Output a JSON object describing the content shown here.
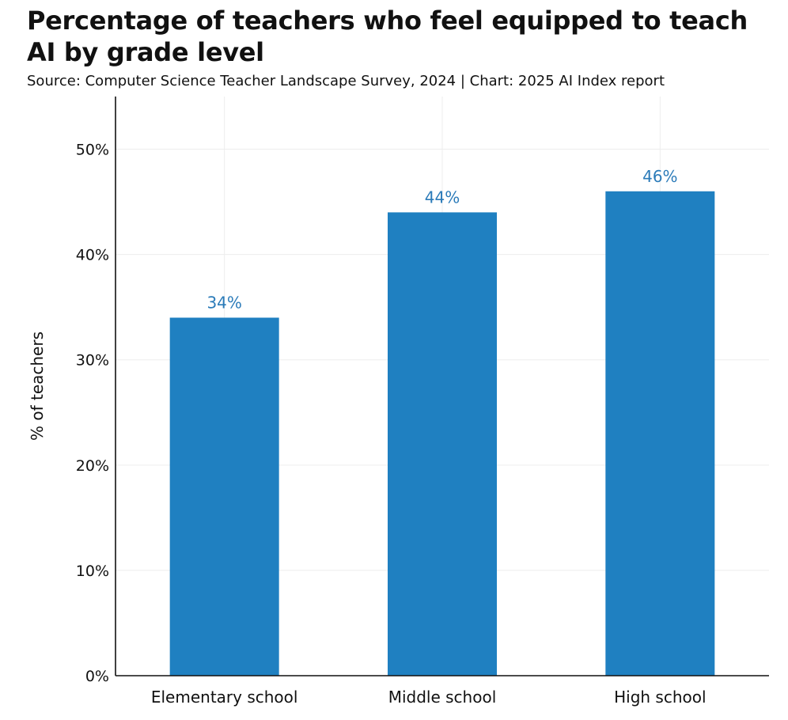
{
  "header": {
    "title": "Percentage of teachers who feel equipped to teach AI by grade level",
    "subtitle": "Source: Computer Science Teacher Landscape Survey, 2024 | Chart: 2025 AI Index report"
  },
  "colors": {
    "bar": "#1f80c1",
    "data_label": "#2b7bb9",
    "grid": "#ededed",
    "axis": "#111111"
  },
  "chart_data": {
    "type": "bar",
    "title": "Percentage of teachers who feel equipped to teach AI by grade level",
    "subtitle": "Source: Computer Science Teacher Landscape Survey, 2024 | Chart: 2025 AI Index report",
    "categories": [
      "Elementary school",
      "Middle school",
      "High school"
    ],
    "values": [
      34,
      44,
      46
    ],
    "data_labels": [
      "34%",
      "44%",
      "46%"
    ],
    "xlabel": "",
    "ylabel": "% of teachers",
    "ylim": [
      0,
      55
    ],
    "yticks": [
      0,
      10,
      20,
      30,
      40,
      50
    ],
    "ytick_labels": [
      "0%",
      "10%",
      "20%",
      "30%",
      "40%",
      "50%"
    ],
    "grid": true,
    "legend": "none"
  }
}
